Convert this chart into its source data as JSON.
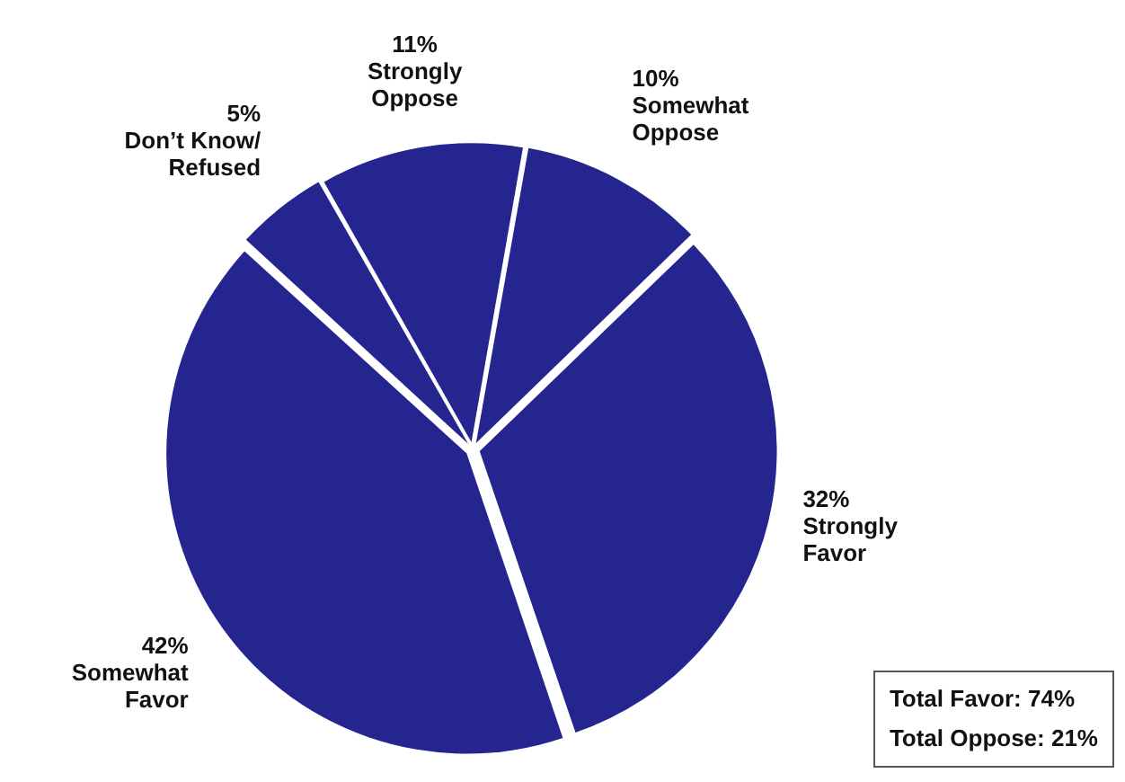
{
  "chart_data": {
    "type": "pie",
    "categories": [
      "Somewhat Oppose",
      "Strongly Favor",
      "Somewhat Favor",
      "Don’t Know/Refused",
      "Strongly Oppose"
    ],
    "values": [
      10,
      32,
      42,
      5,
      11
    ],
    "value_labels": [
      "10%",
      "32%",
      "42%",
      "5%",
      "11%"
    ],
    "colors": [
      "#25258f",
      "#25258f",
      "#25258f",
      "#25258f",
      "#25258f"
    ],
    "legend": false,
    "annotations": [
      "Total Favor: 74%",
      "Total Oppose: 21%"
    ]
  }
}
